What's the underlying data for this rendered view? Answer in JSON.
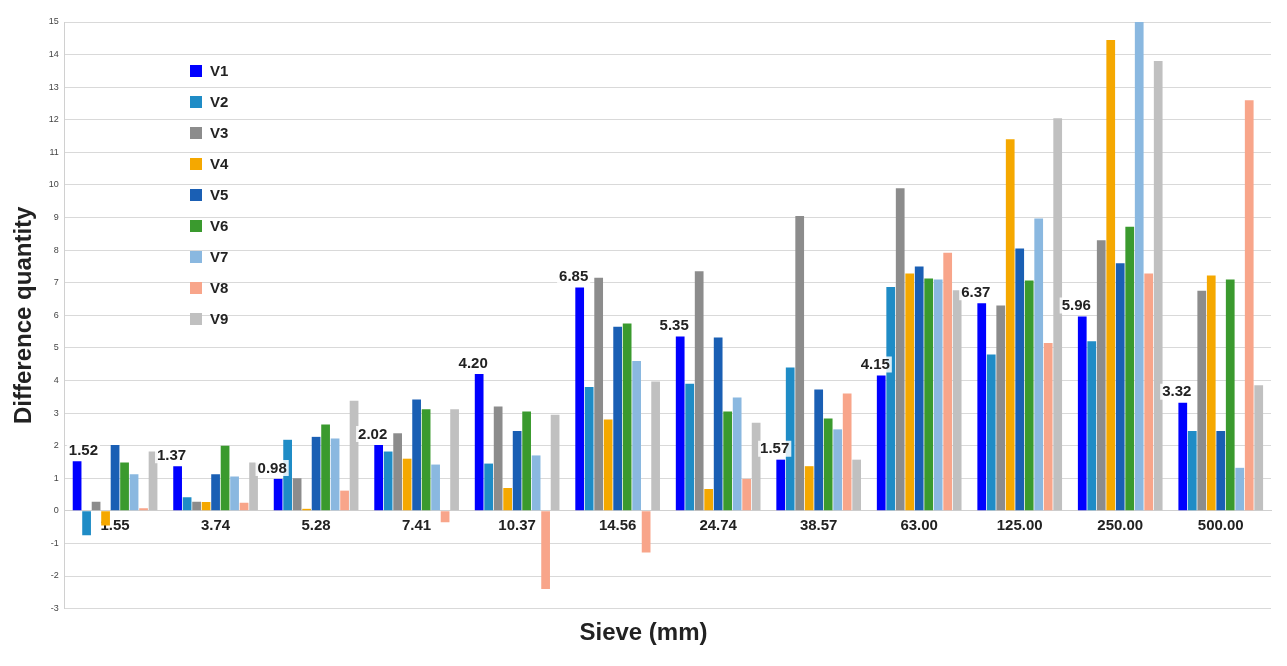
{
  "chart_data": {
    "type": "bar",
    "xlabel": "Sieve (mm)",
    "ylabel": "Difference quantity",
    "categories": [
      "1.55",
      "3.74",
      "5.28",
      "7.41",
      "10.37",
      "14.56",
      "24.74",
      "38.57",
      "63.00",
      "125.00",
      "250.00",
      "500.00"
    ],
    "series": [
      {
        "name": "V1",
        "color": "#0000ff",
        "values": [
          1.52,
          1.37,
          0.98,
          2.02,
          4.2,
          6.85,
          5.35,
          1.57,
          4.15,
          6.37,
          5.96,
          3.32
        ],
        "value_labels": [
          "1.52",
          "1.37",
          "0.98",
          "2.02",
          "4.20",
          "6.85",
          "5.35",
          "1.57",
          "4.15",
          "6.37",
          "5.96",
          "3.32"
        ]
      },
      {
        "name": "V2",
        "color": "#1f8cc6",
        "values": [
          -0.75,
          0.42,
          2.18,
          1.82,
          1.45,
          3.8,
          3.9,
          4.4,
          6.87,
          4.8,
          5.2,
          2.45
        ]
      },
      {
        "name": "V3",
        "color": "#8c8c8c",
        "values": [
          0.28,
          0.28,
          1.0,
          2.38,
          3.2,
          7.15,
          7.35,
          9.05,
          9.9,
          6.3,
          8.3,
          6.75
        ]
      },
      {
        "name": "V4",
        "color": "#f5a800",
        "values": [
          -0.45,
          0.27,
          0.04,
          1.6,
          0.7,
          2.8,
          0.67,
          1.37,
          7.28,
          11.4,
          14.45,
          7.22
        ]
      },
      {
        "name": "V5",
        "color": "#1a5fb4",
        "values": [
          2.02,
          1.12,
          2.27,
          3.42,
          2.45,
          5.65,
          5.32,
          3.72,
          7.5,
          8.05,
          7.6,
          2.45
        ]
      },
      {
        "name": "V6",
        "color": "#3a9a2e",
        "values": [
          1.48,
          2.0,
          2.65,
          3.12,
          3.05,
          5.75,
          3.05,
          2.83,
          7.13,
          7.07,
          8.72,
          7.1
        ]
      },
      {
        "name": "V7",
        "color": "#8ab8e0",
        "values": [
          1.12,
          1.05,
          2.22,
          1.42,
          1.7,
          4.6,
          3.48,
          2.5,
          7.1,
          8.97,
          15,
          1.32
        ]
      },
      {
        "name": "V8",
        "color": "#f8a58a",
        "values": [
          0.08,
          0.25,
          0.62,
          -0.35,
          -2.4,
          -1.28,
          0.98,
          3.6,
          7.92,
          5.15,
          7.28,
          12.6
        ]
      },
      {
        "name": "V9",
        "color": "#c0c0c0",
        "values": [
          1.82,
          1.48,
          3.38,
          3.12,
          2.95,
          3.97,
          2.7,
          1.57,
          6.77,
          12.05,
          13.8,
          3.85
        ]
      }
    ],
    "ylim": [
      -3,
      15
    ],
    "yticks": [
      -3,
      -2,
      -1,
      0,
      1,
      2,
      3,
      4,
      5,
      6,
      7,
      8,
      9,
      10,
      11,
      12,
      13,
      14,
      15
    ],
    "grid": "y",
    "legend": "top left"
  }
}
